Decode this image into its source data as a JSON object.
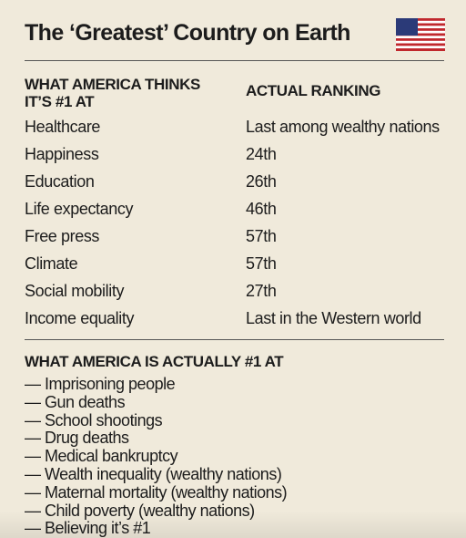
{
  "header": {
    "title": "The ‘Greatest’ Country on Earth"
  },
  "table": {
    "columns": [
      "WHAT AMERICA THINKS IT’S #1 AT",
      "ACTUAL RANKING"
    ],
    "rows": [
      [
        "Healthcare",
        "Last among wealthy nations"
      ],
      [
        "Happiness",
        "24th"
      ],
      [
        "Education",
        "26th"
      ],
      [
        "Life expectancy",
        "46th"
      ],
      [
        "Free press",
        "57th"
      ],
      [
        "Climate",
        "57th"
      ],
      [
        "Social mobility",
        "27th"
      ],
      [
        "Income equality",
        "Last in the Western world"
      ]
    ]
  },
  "section": {
    "heading": "WHAT AMERICA IS ACTUALLY #1 AT",
    "items": [
      "— Imprisoning people",
      "— Gun deaths",
      "— School shootings",
      "— Drug deaths",
      "— Medical bankruptcy",
      "— Wealth inequality (wealthy nations)",
      "— Maternal mortality (wealthy nations)",
      "— Child poverty (wealthy nations)",
      "— Believing it’s #1"
    ]
  }
}
